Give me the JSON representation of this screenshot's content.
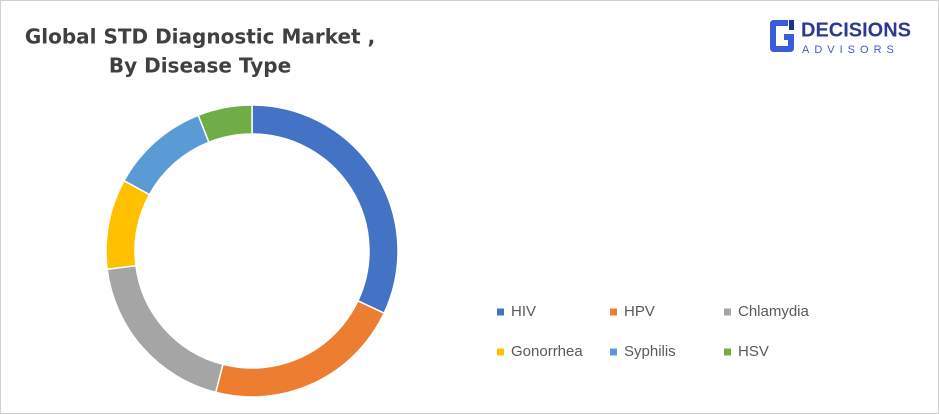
{
  "logo": {
    "name": "DECISIONS",
    "tagline": "ADVISORS"
  },
  "chart_data": {
    "type": "donut",
    "title": [
      "Global STD Diagnostic Market ,",
      "By Disease Type"
    ],
    "categories": [
      "HIV",
      "HPV",
      "Chlamydia",
      "Gonorrhea",
      "Syphilis",
      "HSV"
    ],
    "values": [
      32,
      22,
      19,
      10,
      11,
      6
    ],
    "colors": [
      "#4472c4",
      "#ed7d31",
      "#a5a5a5",
      "#ffc000",
      "#5b9bd5",
      "#70ad47"
    ],
    "legend": "bottom-right"
  }
}
